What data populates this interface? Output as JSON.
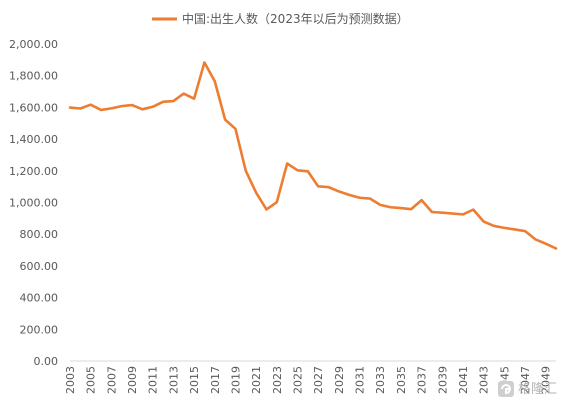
{
  "chart_data": {
    "type": "line",
    "title": "",
    "xlabel": "",
    "ylabel": "",
    "ylim": [
      0,
      2000
    ],
    "yticks": [
      "0.00",
      "200.00",
      "400.00",
      "600.00",
      "800.00",
      "1,000.00",
      "1,200.00",
      "1,400.00",
      "1,600.00",
      "1,800.00",
      "2,000.00"
    ],
    "ytick_values": [
      0,
      200,
      400,
      600,
      800,
      1000,
      1200,
      1400,
      1600,
      1800,
      2000
    ],
    "x": [
      2003,
      2004,
      2005,
      2006,
      2007,
      2008,
      2009,
      2010,
      2011,
      2012,
      2013,
      2014,
      2015,
      2016,
      2017,
      2018,
      2019,
      2020,
      2021,
      2022,
      2023,
      2024,
      2025,
      2026,
      2027,
      2028,
      2029,
      2030,
      2031,
      2032,
      2033,
      2034,
      2035,
      2036,
      2037,
      2038,
      2039,
      2040,
      2041,
      2042,
      2043,
      2044,
      2045,
      2046,
      2047,
      2048,
      2049,
      2050
    ],
    "xtick_labels": [
      "2003",
      "2005",
      "2007",
      "2009",
      "2011",
      "2013",
      "2015",
      "2017",
      "2019",
      "2021",
      "2023",
      "2025",
      "2027",
      "2029",
      "2031",
      "2033",
      "2035",
      "2037",
      "2039",
      "2041",
      "2043",
      "2045",
      "2047",
      "2049"
    ],
    "grid": false,
    "legend_position": "top",
    "series": [
      {
        "name": "中国:出生人数（2023年以后为预测数据）",
        "color": "#ED7D31",
        "values": [
          1599,
          1593,
          1617,
          1584,
          1594,
          1608,
          1615,
          1588,
          1604,
          1635,
          1640,
          1687,
          1655,
          1883,
          1765,
          1523,
          1465,
          1200,
          1062,
          956,
          1002,
          1246,
          1203,
          1197,
          1102,
          1097,
          1070,
          1048,
          1030,
          1025,
          985,
          970,
          965,
          958,
          1015,
          940,
          936,
          930,
          925,
          955,
          880,
          852,
          840,
          830,
          820,
          768,
          740,
          710
        ]
      }
    ]
  },
  "watermark": {
    "text": "格隆汇"
  },
  "icons": {
    "watermark_logo": "gelonghui-logo-icon"
  }
}
